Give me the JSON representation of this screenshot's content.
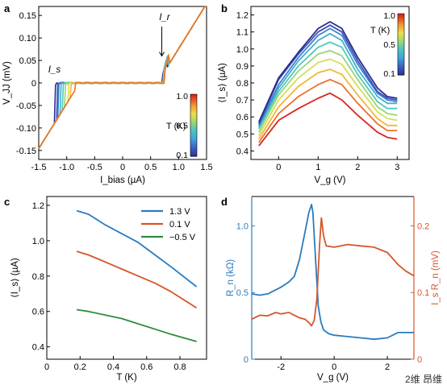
{
  "chart_data": [
    {
      "panel": "a",
      "type": "line",
      "xlabel": "I_bias (µA)",
      "ylabel": "V_JJ (mV)",
      "xlim": [
        -1.5,
        1.5
      ],
      "ylim": [
        -0.17,
        0.17
      ],
      "xticks": [
        "-1.5",
        "-1.0",
        "-0.5",
        "0",
        "0.5",
        "1.0",
        "1.5"
      ],
      "yticks": [
        "-0.15",
        "-0.10",
        "-0.05",
        "0",
        "0.05",
        "0.10",
        "0.15"
      ],
      "annotations": [
        "I_s",
        "I_r"
      ],
      "colorbar": {
        "label": "T (K)",
        "ticks": [
          "1.0",
          "0.5",
          "0.1"
        ],
        "range": [
          0.1,
          1.0
        ]
      },
      "sweeps": [
        {
          "T": 0.1,
          "Is": 1.2
        },
        {
          "T": 0.2,
          "Is": 1.17
        },
        {
          "T": 0.3,
          "Is": 1.14
        },
        {
          "T": 0.4,
          "Is": 1.1
        },
        {
          "T": 0.5,
          "Is": 1.06
        },
        {
          "T": 0.6,
          "Is": 1.02
        },
        {
          "T": 0.7,
          "Is": 0.97
        },
        {
          "T": 0.8,
          "Is": 0.92
        },
        {
          "T": 0.9,
          "Is": 0.85
        }
      ],
      "retrapping_current": 0.72,
      "resistance_slope": 0.2
    },
    {
      "panel": "b",
      "type": "line",
      "xlabel": "V_g (V)",
      "ylabel": "⟨I_s⟩ (µA)",
      "xlim": [
        -0.7,
        3.3
      ],
      "ylim": [
        0.35,
        1.25
      ],
      "xticks": [
        "0",
        "1",
        "2",
        "3"
      ],
      "yticks": [
        "0.4",
        "0.5",
        "0.6",
        "0.7",
        "0.8",
        "0.9",
        "1.0",
        "1.1",
        "1.2"
      ],
      "colorbar": {
        "label": "T (K)",
        "ticks": [
          "1.0",
          "0.5",
          "0.1"
        ],
        "range": [
          0.1,
          1.0
        ]
      },
      "x": [
        -0.5,
        0,
        0.5,
        1.0,
        1.3,
        1.6,
        2.0,
        2.5,
        2.75,
        3.0
      ],
      "series": [
        {
          "T": 0.1,
          "values": [
            0.57,
            0.83,
            0.98,
            1.12,
            1.16,
            1.12,
            0.95,
            0.77,
            0.72,
            0.71
          ]
        },
        {
          "T": 0.2,
          "values": [
            0.56,
            0.82,
            0.97,
            1.1,
            1.14,
            1.1,
            0.93,
            0.75,
            0.71,
            0.7
          ]
        },
        {
          "T": 0.3,
          "values": [
            0.55,
            0.79,
            0.95,
            1.08,
            1.12,
            1.08,
            0.91,
            0.74,
            0.7,
            0.69
          ]
        },
        {
          "T": 0.4,
          "values": [
            0.54,
            0.77,
            0.93,
            1.05,
            1.09,
            1.05,
            0.88,
            0.72,
            0.68,
            0.68
          ]
        },
        {
          "T": 0.5,
          "values": [
            0.53,
            0.75,
            0.9,
            1.01,
            1.04,
            1.01,
            0.85,
            0.69,
            0.65,
            0.65
          ]
        },
        {
          "T": 0.6,
          "values": [
            0.51,
            0.73,
            0.87,
            0.97,
            0.99,
            0.96,
            0.82,
            0.66,
            0.62,
            0.61
          ]
        },
        {
          "T": 0.7,
          "values": [
            0.49,
            0.7,
            0.83,
            0.92,
            0.94,
            0.91,
            0.78,
            0.63,
            0.59,
            0.58
          ]
        },
        {
          "T": 0.8,
          "values": [
            0.47,
            0.66,
            0.78,
            0.86,
            0.88,
            0.85,
            0.73,
            0.59,
            0.55,
            0.55
          ]
        },
        {
          "T": 0.9,
          "values": [
            0.45,
            0.62,
            0.72,
            0.79,
            0.82,
            0.79,
            0.68,
            0.56,
            0.52,
            0.52
          ]
        },
        {
          "T": 1.0,
          "values": [
            0.43,
            0.58,
            0.65,
            0.71,
            0.74,
            0.7,
            0.61,
            0.51,
            0.48,
            0.47
          ]
        }
      ]
    },
    {
      "panel": "c",
      "type": "line",
      "xlabel": "T (K)",
      "ylabel": "⟨I_s⟩ (µA)",
      "xlim": [
        0,
        0.96
      ],
      "ylim": [
        0.33,
        1.25
      ],
      "xticks": [
        "0",
        "0.2",
        "0.4",
        "0.6",
        "0.8"
      ],
      "yticks": [
        "0.4",
        "0.6",
        "0.8",
        "1.0",
        "1.2"
      ],
      "legend_position": "top-right",
      "x": [
        0.18,
        0.25,
        0.35,
        0.45,
        0.55,
        0.65,
        0.75,
        0.9
      ],
      "series": [
        {
          "name": "1.3 V",
          "color": "#2b7bbf",
          "values": [
            1.17,
            1.15,
            1.09,
            1.04,
            0.99,
            0.92,
            0.85,
            0.74
          ]
        },
        {
          "name": "0.1 V",
          "color": "#d4572a",
          "values": [
            0.94,
            0.92,
            0.88,
            0.84,
            0.8,
            0.76,
            0.71,
            0.62
          ]
        },
        {
          "name": "−0.5 V",
          "color": "#2e8b3e",
          "values": [
            0.61,
            0.6,
            0.58,
            0.56,
            0.53,
            0.5,
            0.47,
            0.43
          ]
        }
      ]
    },
    {
      "panel": "d",
      "type": "line",
      "xlabel": "V_g (V)",
      "ylabel_left": "R_n (kΩ)",
      "ylabel_right": "I_s R_n (mV)",
      "xlim": [
        -3.1,
        3.0
      ],
      "ylim_left": [
        0,
        1.22
      ],
      "ylim_right": [
        0,
        0.244
      ],
      "xticks": [
        "-2",
        "0",
        "2"
      ],
      "yticks_left": [
        "0",
        "0.5",
        "1.0"
      ],
      "yticks_right": [
        "0",
        "0.1",
        "0.2"
      ],
      "series": [
        {
          "name": "R_n",
          "color": "#2b7bbf",
          "axis": "left",
          "points": [
            [
              -3.1,
              0.49
            ],
            [
              -2.8,
              0.48
            ],
            [
              -2.5,
              0.49
            ],
            [
              -2.2,
              0.52
            ],
            [
              -2.0,
              0.54
            ],
            [
              -1.7,
              0.58
            ],
            [
              -1.5,
              0.62
            ],
            [
              -1.3,
              0.75
            ],
            [
              -1.1,
              0.95
            ],
            [
              -0.95,
              1.1
            ],
            [
              -0.85,
              1.16
            ],
            [
              -0.8,
              1.1
            ],
            [
              -0.7,
              0.75
            ],
            [
              -0.6,
              0.4
            ],
            [
              -0.5,
              0.28
            ],
            [
              -0.4,
              0.22
            ],
            [
              -0.2,
              0.19
            ],
            [
              0,
              0.18
            ],
            [
              0.5,
              0.17
            ],
            [
              1.0,
              0.16
            ],
            [
              1.5,
              0.15
            ],
            [
              2.0,
              0.16
            ],
            [
              2.4,
              0.2
            ],
            [
              2.7,
              0.2
            ],
            [
              3.0,
              0.2
            ]
          ]
        },
        {
          "name": "I_s R_n",
          "color": "#d4572a",
          "axis": "right",
          "points": [
            [
              -3.1,
              0.06
            ],
            [
              -2.8,
              0.066
            ],
            [
              -2.5,
              0.065
            ],
            [
              -2.2,
              0.07
            ],
            [
              -2.0,
              0.068
            ],
            [
              -1.7,
              0.07
            ],
            [
              -1.5,
              0.066
            ],
            [
              -1.3,
              0.062
            ],
            [
              -1.1,
              0.06
            ],
            [
              -0.95,
              0.055
            ],
            [
              -0.85,
              0.05
            ],
            [
              -0.75,
              0.058
            ],
            [
              -0.65,
              0.09
            ],
            [
              -0.55,
              0.17
            ],
            [
              -0.48,
              0.212
            ],
            [
              -0.4,
              0.185
            ],
            [
              -0.3,
              0.17
            ],
            [
              0,
              0.168
            ],
            [
              0.5,
              0.172
            ],
            [
              1.0,
              0.17
            ],
            [
              1.5,
              0.168
            ],
            [
              2.0,
              0.16
            ],
            [
              2.4,
              0.142
            ],
            [
              2.7,
              0.132
            ],
            [
              3.0,
              0.125
            ]
          ]
        }
      ]
    }
  ],
  "panel_labels": {
    "a": "a",
    "b": "b",
    "c": "c",
    "d": "d"
  },
  "watermark": "2维 昂维"
}
